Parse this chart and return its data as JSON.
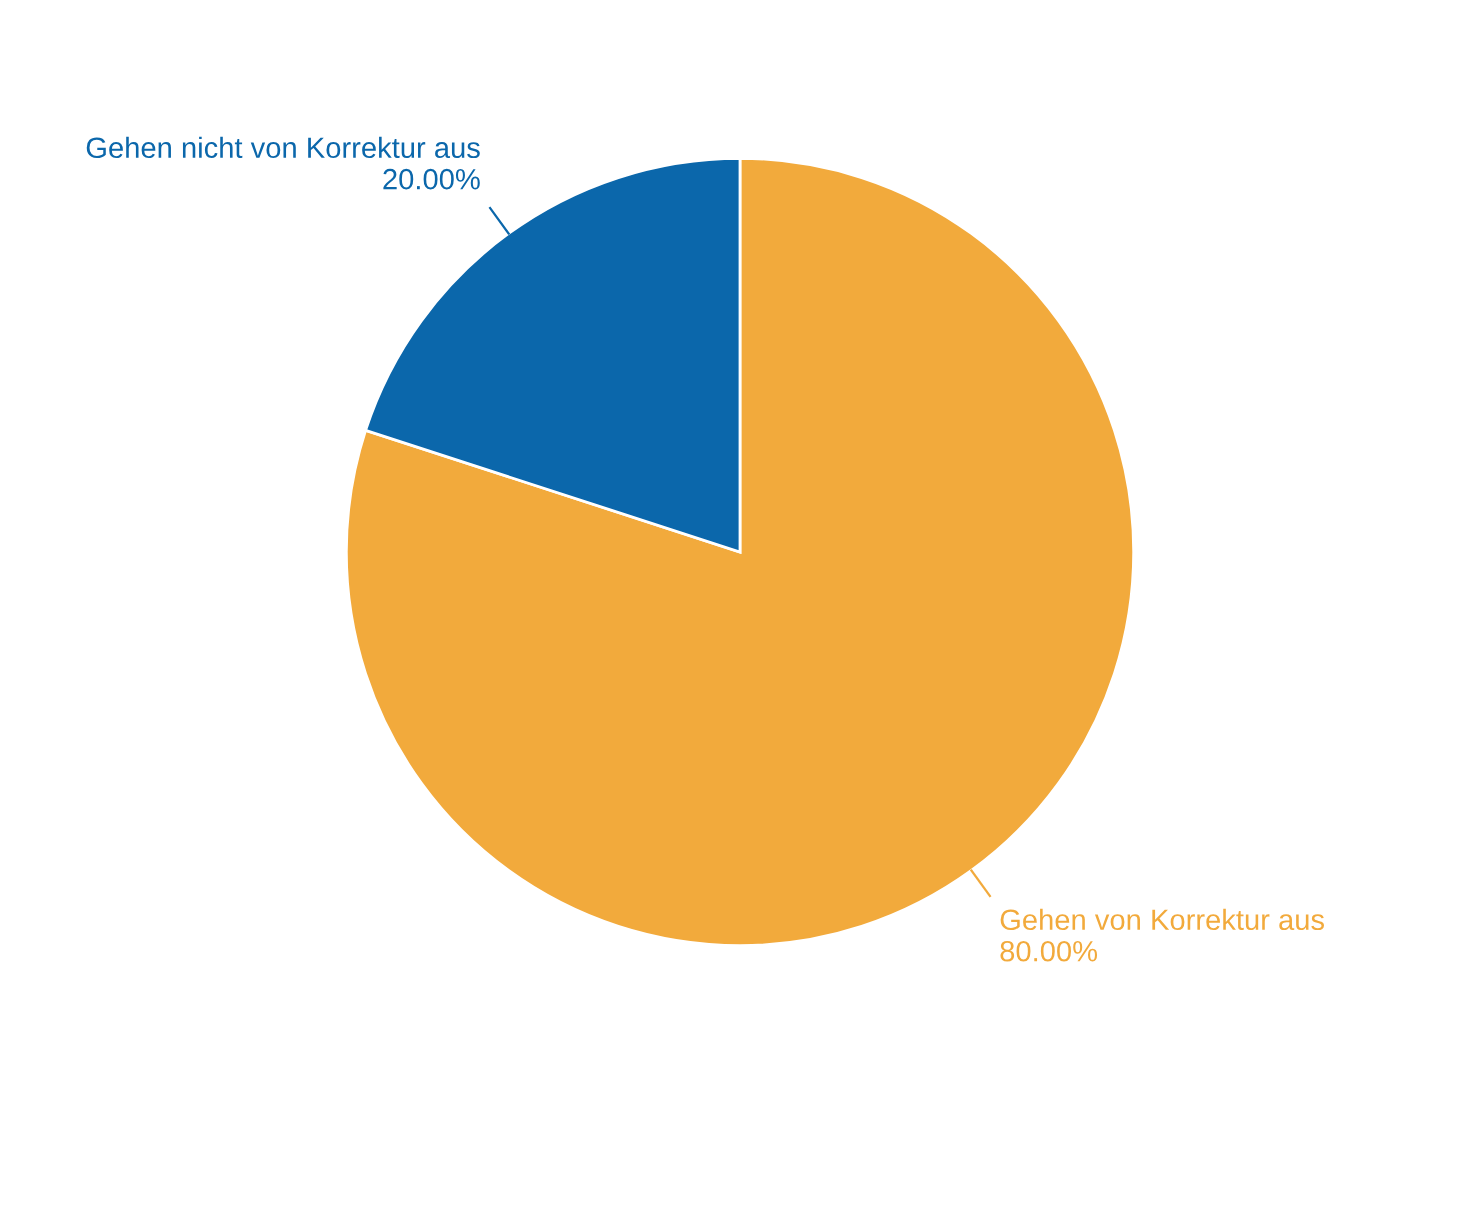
{
  "chart_data": {
    "type": "pie",
    "categories": [
      "Gehen von Korrektur aus",
      "Gehen nicht von Korrektur aus"
    ],
    "values": [
      80,
      20
    ],
    "value_labels": [
      "80.00%",
      "20.00%"
    ],
    "colors": [
      "#f2aa3c",
      "#0b67ab"
    ]
  }
}
